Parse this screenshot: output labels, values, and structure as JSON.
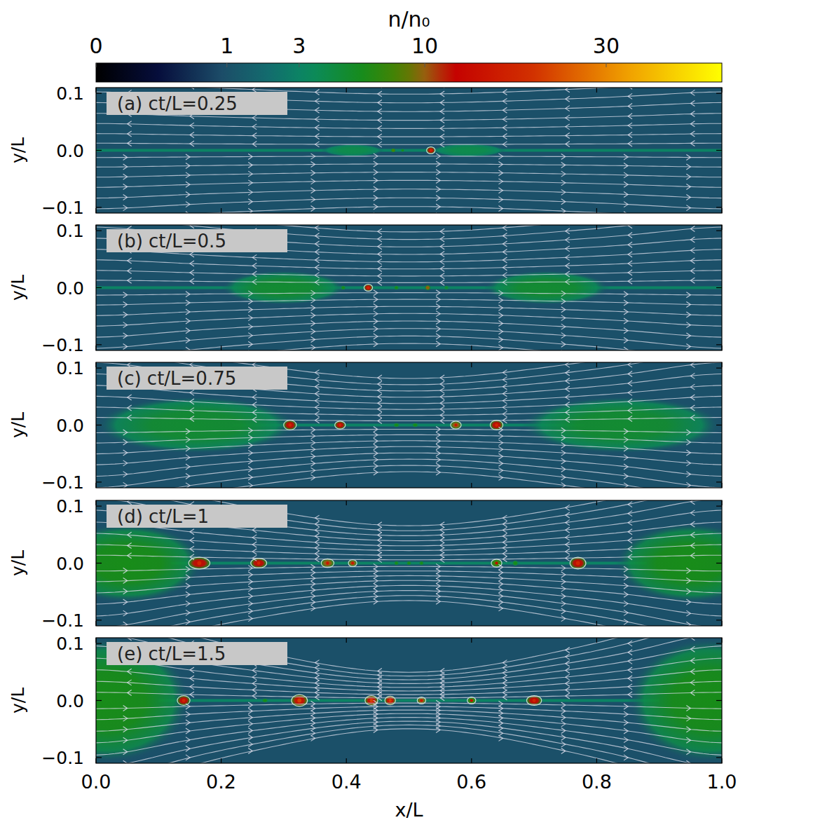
{
  "chart_data": {
    "type": "heatmap",
    "x_label": "x/L",
    "y_label": "y/L",
    "xlim": [
      0,
      1
    ],
    "ylim": [
      -0.11,
      0.11
    ],
    "xticks": [
      {
        "value": 0,
        "label": "0.0"
      },
      0.2,
      0.4,
      0.6,
      0.8,
      {
        "value": 1,
        "label": "1.0"
      }
    ],
    "yticks": [
      {
        "value": -0.1,
        "label": "−0.1"
      },
      {
        "value": 0,
        "label": "0.0"
      },
      0.1
    ],
    "colorbar": {
      "title": "n/n₀",
      "range": [
        0,
        50
      ],
      "ticks": [
        0,
        1,
        3,
        10,
        30
      ]
    },
    "background": 1,
    "panels": [
      {
        "title": "(a) ct/L=0.25",
        "sheet": {
          "x": [
            0,
            1
          ],
          "n": 3
        },
        "structures": [
          {
            "x": 0.41,
            "y": 0,
            "rx": 0.05,
            "ry": 0.011,
            "n": 4
          },
          {
            "x": 0.595,
            "y": 0,
            "rx": 0.06,
            "ry": 0.012,
            "n": 4
          },
          {
            "x": 0.475,
            "y": 0,
            "rx": 0.004,
            "ry": 0.004,
            "n": 8
          },
          {
            "x": 0.49,
            "y": 0,
            "rx": 0.003,
            "ry": 0.003,
            "n": 6
          },
          {
            "x": 0.535,
            "y": 0,
            "rx": 0.008,
            "ry": 0.007,
            "n": 12
          }
        ]
      },
      {
        "title": "(b) ct/L=0.5",
        "sheet": {
          "x": [
            0,
            1
          ],
          "n": 3
        },
        "structures": [
          {
            "x": 0.3,
            "y": 0,
            "rx": 0.1,
            "ry": 0.03,
            "n": 5
          },
          {
            "x": 0.72,
            "y": 0,
            "rx": 0.1,
            "ry": 0.03,
            "n": 5
          },
          {
            "x": 0.395,
            "y": 0,
            "rx": 0.004,
            "ry": 0.004,
            "n": 6
          },
          {
            "x": 0.435,
            "y": 0,
            "rx": 0.008,
            "ry": 0.007,
            "n": 12
          },
          {
            "x": 0.48,
            "y": 0,
            "rx": 0.004,
            "ry": 0.004,
            "n": 6
          },
          {
            "x": 0.53,
            "y": 0,
            "rx": 0.005,
            "ry": 0.005,
            "n": 10
          },
          {
            "x": 0.56,
            "y": 0,
            "rx": 0.004,
            "ry": 0.004,
            "n": 5
          }
        ]
      },
      {
        "title": "(c) ct/L=0.75",
        "sheet": {
          "x": [
            0.22,
            0.78
          ],
          "n": 3
        },
        "structures": [
          {
            "x": 0.16,
            "y": 0,
            "rx": 0.16,
            "ry": 0.05,
            "n": 5
          },
          {
            "x": 0.84,
            "y": 0,
            "rx": 0.16,
            "ry": 0.05,
            "n": 5
          },
          {
            "x": 0.31,
            "y": 0,
            "rx": 0.012,
            "ry": 0.01,
            "n": 12
          },
          {
            "x": 0.39,
            "y": 0,
            "rx": 0.01,
            "ry": 0.008,
            "n": 12
          },
          {
            "x": 0.48,
            "y": 0,
            "rx": 0.005,
            "ry": 0.004,
            "n": 6
          },
          {
            "x": 0.51,
            "y": 0,
            "rx": 0.005,
            "ry": 0.004,
            "n": 6
          },
          {
            "x": 0.575,
            "y": 0,
            "rx": 0.01,
            "ry": 0.008,
            "n": 10
          },
          {
            "x": 0.64,
            "y": 0,
            "rx": 0.012,
            "ry": 0.01,
            "n": 12
          }
        ]
      },
      {
        "title": "(d) ct/L=1",
        "sheet": {
          "x": [
            0.12,
            0.88
          ],
          "n": 3
        },
        "structures": [
          {
            "x": 0.05,
            "y": 0,
            "rx": 0.12,
            "ry": 0.07,
            "n": 6
          },
          {
            "x": 0.95,
            "y": 0,
            "rx": 0.12,
            "ry": 0.07,
            "n": 6
          },
          {
            "x": 0.165,
            "y": 0,
            "rx": 0.02,
            "ry": 0.012,
            "n": 12
          },
          {
            "x": 0.26,
            "y": 0,
            "rx": 0.015,
            "ry": 0.01,
            "n": 12
          },
          {
            "x": 0.37,
            "y": 0,
            "rx": 0.012,
            "ry": 0.009,
            "n": 10
          },
          {
            "x": 0.41,
            "y": 0,
            "rx": 0.008,
            "ry": 0.007,
            "n": 10
          },
          {
            "x": 0.48,
            "y": 0,
            "rx": 0.004,
            "ry": 0.004,
            "n": 6
          },
          {
            "x": 0.5,
            "y": 0,
            "rx": 0.004,
            "ry": 0.004,
            "n": 6
          },
          {
            "x": 0.52,
            "y": 0,
            "rx": 0.004,
            "ry": 0.004,
            "n": 6
          },
          {
            "x": 0.64,
            "y": 0,
            "rx": 0.01,
            "ry": 0.008,
            "n": 8
          },
          {
            "x": 0.67,
            "y": 0,
            "rx": 0.005,
            "ry": 0.005,
            "n": 6
          },
          {
            "x": 0.77,
            "y": 0,
            "rx": 0.015,
            "ry": 0.012,
            "n": 12
          }
        ]
      },
      {
        "title": "(e) ct/L=1.5",
        "sheet": {
          "x": [
            0.1,
            0.9
          ],
          "n": 3
        },
        "structures": [
          {
            "x": 0.02,
            "y": 0,
            "rx": 0.13,
            "ry": 0.11,
            "n": 6
          },
          {
            "x": 0.98,
            "y": 0,
            "rx": 0.13,
            "ry": 0.11,
            "n": 6
          },
          {
            "x": 0.14,
            "y": 0,
            "rx": 0.012,
            "ry": 0.01,
            "n": 12
          },
          {
            "x": 0.27,
            "y": 0,
            "rx": 0.005,
            "ry": 0.004,
            "n": 6
          },
          {
            "x": 0.325,
            "y": 0,
            "rx": 0.015,
            "ry": 0.012,
            "n": 15
          },
          {
            "x": 0.44,
            "y": 0,
            "rx": 0.012,
            "ry": 0.01,
            "n": 15
          },
          {
            "x": 0.47,
            "y": 0,
            "rx": 0.01,
            "ry": 0.009,
            "n": 15
          },
          {
            "x": 0.52,
            "y": 0,
            "rx": 0.008,
            "ry": 0.007,
            "n": 10
          },
          {
            "x": 0.6,
            "y": 0,
            "rx": 0.008,
            "ry": 0.007,
            "n": 8
          },
          {
            "x": 0.7,
            "y": 0,
            "rx": 0.014,
            "ry": 0.01,
            "n": 12
          }
        ]
      }
    ]
  }
}
